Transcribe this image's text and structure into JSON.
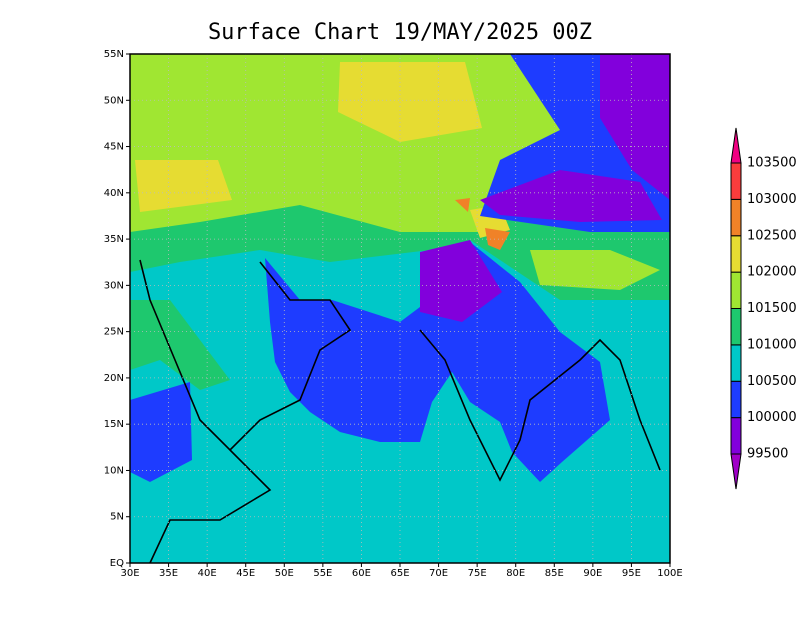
{
  "chart_data": {
    "type": "contour",
    "title": "Surface Chart 19/MAY/2025 00Z",
    "xlim": [
      30,
      100
    ],
    "ylim": [
      0,
      55
    ],
    "xticks": [
      {
        "value": 30,
        "label": "30E"
      },
      {
        "value": 35,
        "label": "35E"
      },
      {
        "value": 40,
        "label": "40E"
      },
      {
        "value": 45,
        "label": "45E"
      },
      {
        "value": 50,
        "label": "50E"
      },
      {
        "value": 55,
        "label": "55E"
      },
      {
        "value": 60,
        "label": "60E"
      },
      {
        "value": 65,
        "label": "65E"
      },
      {
        "value": 70,
        "label": "70E"
      },
      {
        "value": 75,
        "label": "75E"
      },
      {
        "value": 80,
        "label": "80E"
      },
      {
        "value": 85,
        "label": "85E"
      },
      {
        "value": 90,
        "label": "90E"
      },
      {
        "value": 95,
        "label": "95E"
      },
      {
        "value": 100,
        "label": "100E"
      }
    ],
    "yticks": [
      {
        "value": 0,
        "label": "EQ"
      },
      {
        "value": 5,
        "label": "5N"
      },
      {
        "value": 10,
        "label": "10N"
      },
      {
        "value": 15,
        "label": "15N"
      },
      {
        "value": 20,
        "label": "20N"
      },
      {
        "value": 25,
        "label": "25N"
      },
      {
        "value": 30,
        "label": "30N"
      },
      {
        "value": 35,
        "label": "35N"
      },
      {
        "value": 40,
        "label": "40N"
      },
      {
        "value": 45,
        "label": "45N"
      },
      {
        "value": 50,
        "label": "50N"
      },
      {
        "value": 55,
        "label": "55N"
      }
    ],
    "grid": true,
    "colorbar": {
      "levels": [
        99500,
        100000,
        100500,
        101000,
        101500,
        102000,
        102500,
        103000,
        103500
      ],
      "colors": [
        "#a000c8",
        "#8200dc",
        "#1e3cff",
        "#00c8c8",
        "#1ec86e",
        "#a0e632",
        "#e6dc32",
        "#f08228",
        "#fa3c3c",
        "#f00082"
      ]
    }
  }
}
